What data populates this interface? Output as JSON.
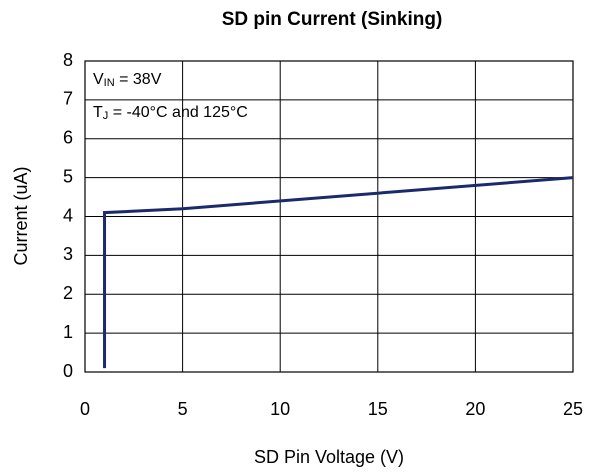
{
  "chart_data": {
    "type": "line",
    "title": "SD pin Current (Sinking)",
    "xlabel": "SD Pin Voltage (V)",
    "ylabel": "Current (uA)",
    "annotations": [
      {
        "text": "V",
        "sub": "IN",
        "rest": " = 38V"
      },
      {
        "text": "T",
        "sub": "J",
        "rest": " = -40°C and 125°C"
      }
    ],
    "series": [
      {
        "color": "#1b2a6b",
        "x": [
          1,
          1,
          5,
          25
        ],
        "values": [
          0.1,
          4.1,
          4.2,
          5.0
        ]
      }
    ],
    "xlim": [
      0,
      25
    ],
    "xticks": [
      0,
      5,
      10,
      15,
      20,
      25
    ],
    "ylim": [
      0,
      8
    ],
    "yticks": [
      0,
      1,
      2,
      3,
      4,
      5,
      6,
      7,
      8
    ],
    "grid": true
  }
}
